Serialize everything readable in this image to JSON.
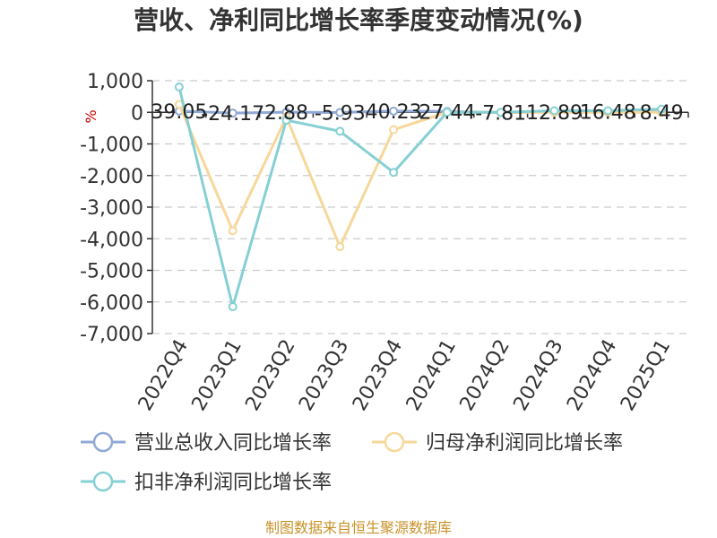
{
  "chart_data": {
    "type": "line",
    "title": "营收、净利同比增长率季度变动情况(%)",
    "ylabel": "%",
    "categories": [
      "2022Q4",
      "2023Q1",
      "2023Q2",
      "2023Q3",
      "2023Q4",
      "2024Q1",
      "2024Q2",
      "2024Q3",
      "2024Q4",
      "2025Q1"
    ],
    "ylim": [
      -7000,
      1000
    ],
    "yticks": [
      1000,
      0,
      -1000,
      -2000,
      -3000,
      -4000,
      -5000,
      -6000,
      -7000
    ],
    "ytick_labels": [
      "1,000",
      "0",
      "-1,000",
      "-2,000",
      "-3,000",
      "-4,000",
      "-5,000",
      "-6,000",
      "-7,000"
    ],
    "grid": true,
    "legend_position": "bottom",
    "series": [
      {
        "name": "营业总收入同比增长率",
        "color": "#8fa8d6",
        "values": [
          39.05,
          -24.17,
          2.88,
          -5.93,
          40.23,
          27.44,
          -7.81,
          12.89,
          16.48,
          8.49
        ],
        "labels": [
          "39.05",
          "-24.17",
          "2.88",
          "-5.93",
          "40.23",
          "27.44",
          "-7.81",
          "12.89",
          "16.48",
          "8.49"
        ]
      },
      {
        "name": "归母净利润同比增长率",
        "color": "#f7d79a",
        "values": [
          250,
          -3750,
          -150,
          -4250,
          -550,
          0,
          0,
          0,
          0,
          0
        ]
      },
      {
        "name": "扣非净利润同比增长率",
        "color": "#86d0d4",
        "values": [
          800,
          -6150,
          -250,
          -600,
          -1900,
          0,
          0,
          50,
          50,
          100
        ]
      }
    ],
    "source": "制图数据来自恒生聚源数据库"
  }
}
